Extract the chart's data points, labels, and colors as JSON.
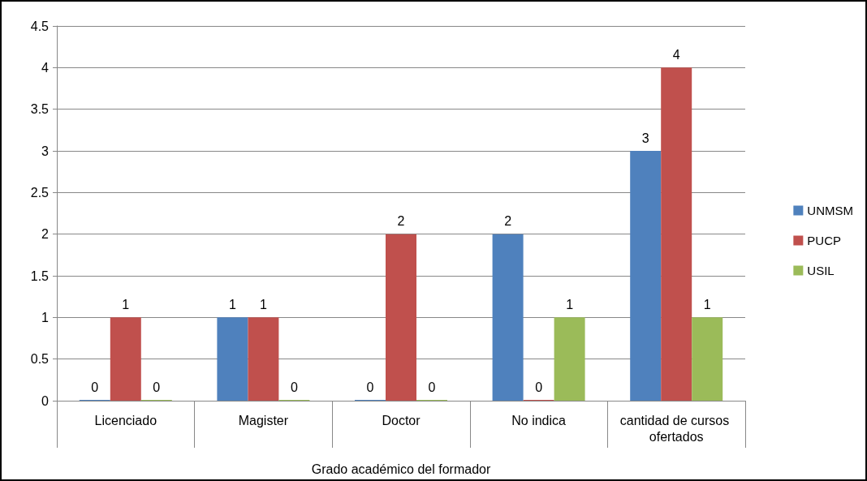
{
  "chart_data": {
    "type": "bar",
    "xlabel": "Grado académico del formador",
    "categories": [
      "Licenciado",
      "Magister",
      "Doctor",
      "No indica",
      "cantidad de cursos ofertados"
    ],
    "series": [
      {
        "name": "UNMSM",
        "color": "#4f81bd",
        "values": [
          0,
          1,
          0,
          2,
          3
        ]
      },
      {
        "name": "PUCP",
        "color": "#c0504d",
        "values": [
          1,
          1,
          2,
          0,
          4
        ]
      },
      {
        "name": "USIL",
        "color": "#9bbb59",
        "values": [
          0,
          0,
          0,
          1,
          1
        ]
      }
    ],
    "ylim": [
      0,
      4.5
    ],
    "yticks": [
      0,
      0.5,
      1,
      1.5,
      2,
      2.5,
      3,
      3.5,
      4,
      4.5
    ],
    "grid": "y",
    "legend": "right",
    "data_labels": true
  }
}
